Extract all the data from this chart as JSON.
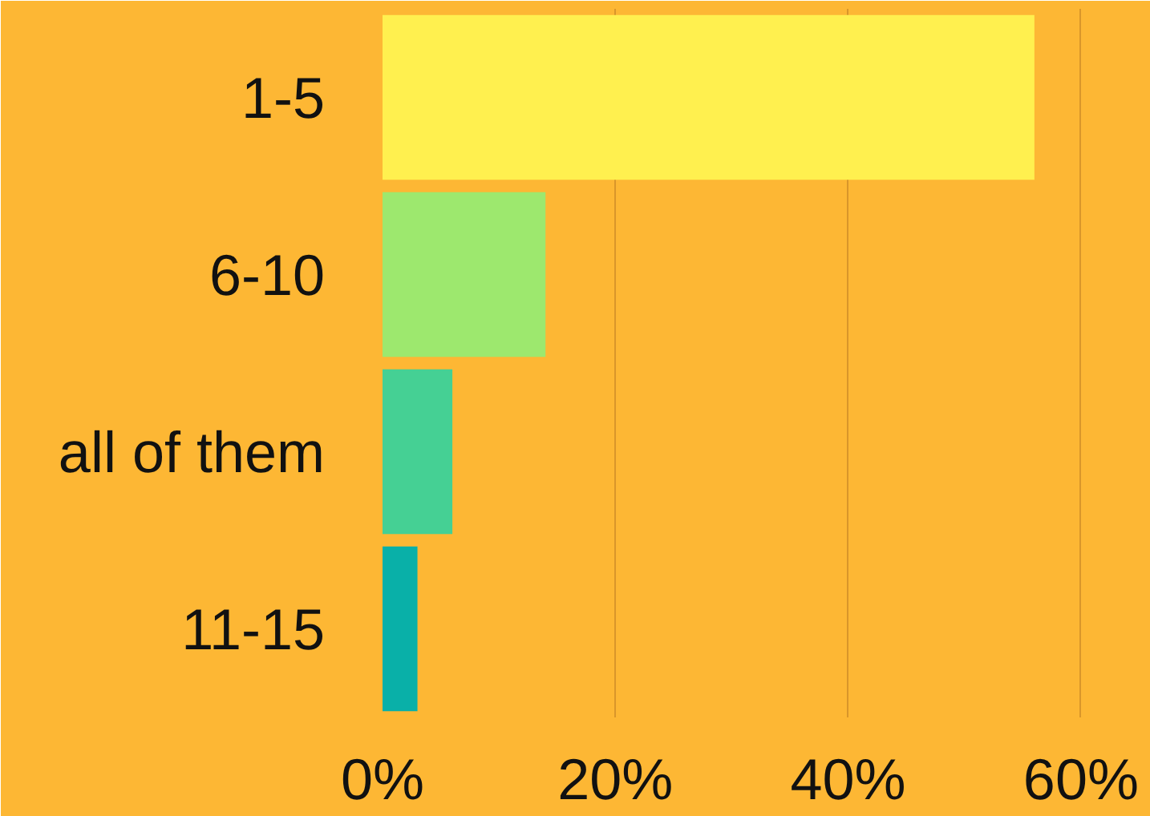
{
  "chart_data": {
    "type": "bar",
    "orientation": "horizontal",
    "categories": [
      "1-5",
      "6-10",
      "all of them",
      "11-15"
    ],
    "values": [
      56,
      14,
      6,
      3
    ],
    "colors": [
      "#fff04f",
      "#9de86e",
      "#45d094",
      "#09b0a8"
    ],
    "xlim": [
      0,
      66
    ],
    "xticks": [
      {
        "value": 0,
        "label": "0%"
      },
      {
        "value": 20,
        "label": "20%"
      },
      {
        "value": 40,
        "label": "40%"
      },
      {
        "value": 60,
        "label": "60%"
      }
    ],
    "grid": "x"
  }
}
